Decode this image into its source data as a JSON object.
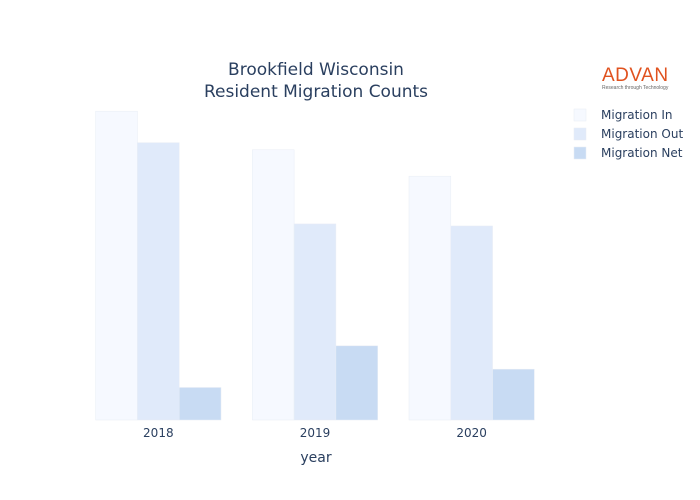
{
  "chart_data": {
    "type": "bar",
    "title_lines": [
      "Brookfield Wisconsin",
      "Resident Migration Counts"
    ],
    "xlabel": "year",
    "categories": [
      "2018",
      "2019",
      "2020"
    ],
    "series": [
      {
        "name": "Migration In",
        "color": "#f6f9ff",
        "values": [
          3040,
          2660,
          2400
        ]
      },
      {
        "name": "Migration Out",
        "color": "#e0eafa",
        "values": [
          2730,
          1930,
          1910
        ]
      },
      {
        "name": "Migration Net",
        "color": "#c8dbf3",
        "values": [
          320,
          730,
          500
        ]
      }
    ],
    "ylim": [
      0,
      3150
    ],
    "y_axis_visible": false,
    "grid": false,
    "legend_position": "top-right"
  },
  "logo": {
    "name": "ADVAN",
    "tagline": "Research through Technology"
  }
}
